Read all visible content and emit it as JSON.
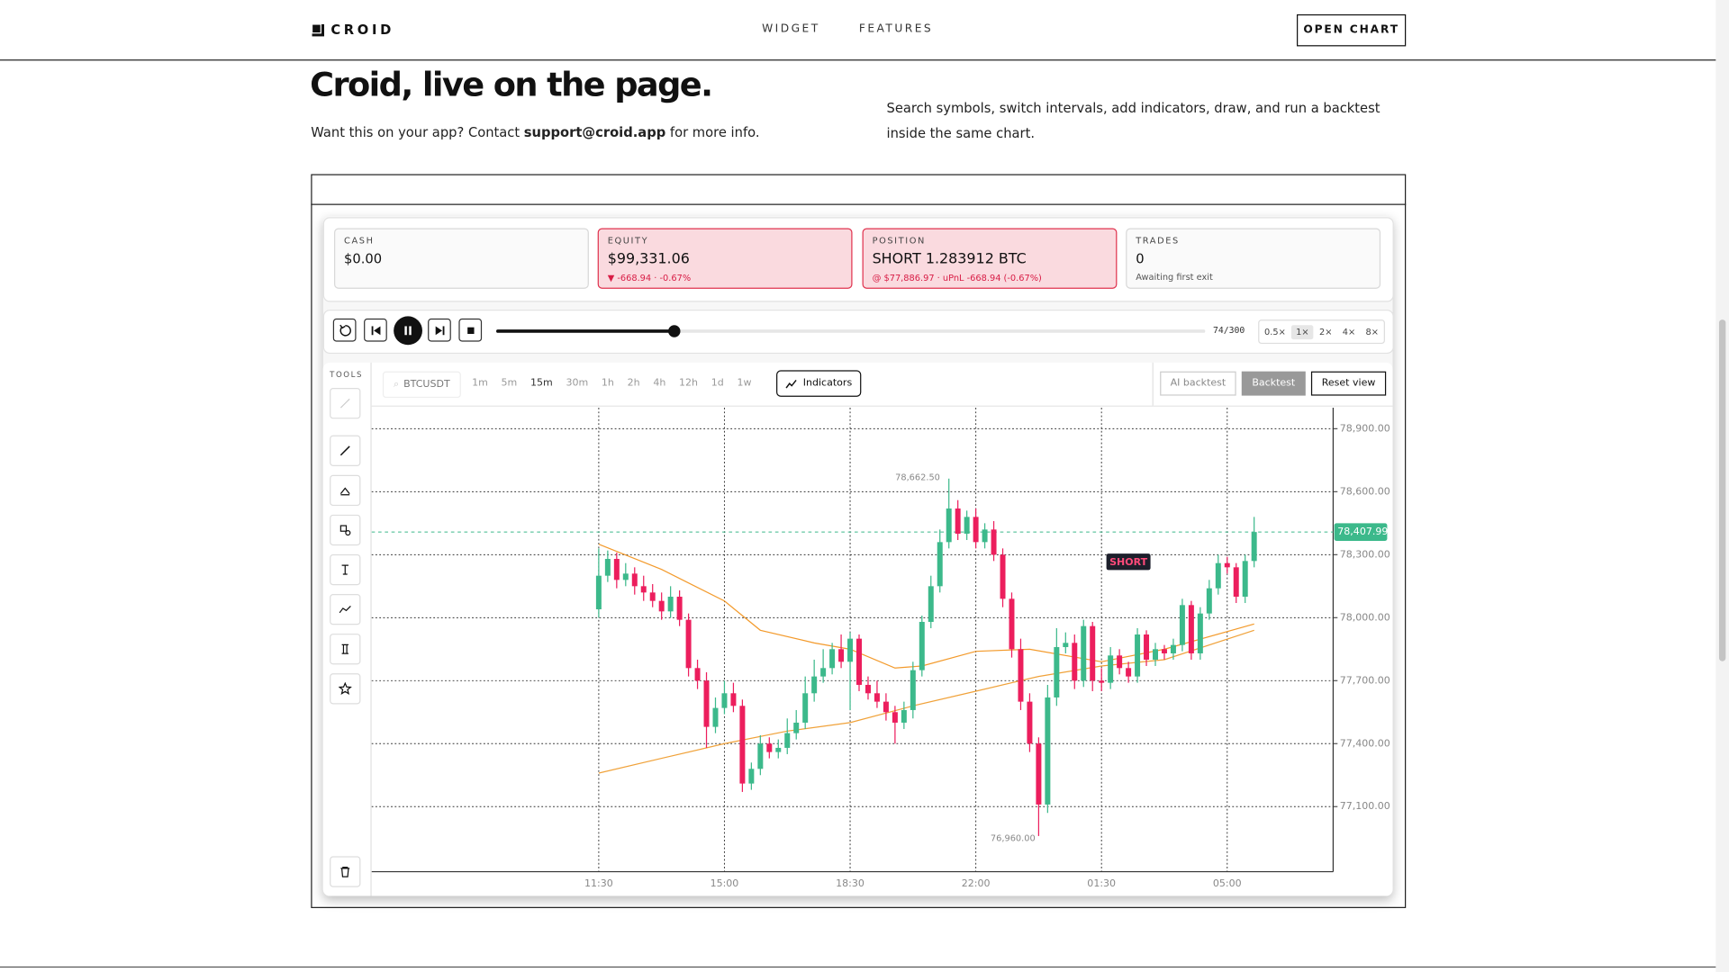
{
  "nav": {
    "brand": "CROID",
    "links": [
      "WIDGET",
      "FEATURES"
    ],
    "button": "OPEN CHART"
  },
  "hero": {
    "title": "Croid, live on the page.",
    "contact_prefix": "Want this on your app? Contact",
    "email": "support@croid.app",
    "contact_suffix": "for more info.",
    "description": "Search symbols, switch intervals, add indicators, draw, and run a backtest inside the same chart."
  },
  "stats": [
    {
      "label": "CASH",
      "value": "$0.00"
    },
    {
      "label": "EQUITY",
      "value": "$99,331.06",
      "detail": "▼ -668.94 · -0.67%"
    },
    {
      "label": "POSITION",
      "value": "SHORT 1.283912 BTC",
      "detail": "@ $77,886.97 · uPnL -668.94 (-0.67%)"
    },
    {
      "label": "TRADES",
      "value": "0",
      "detail": "Awaiting first exit"
    }
  ],
  "player": {
    "progress": "74/300",
    "speeds": [
      "0.5×",
      "1×",
      "2×",
      "4×",
      "8×"
    ]
  },
  "toolbar": {
    "tools_label": "TOOLS",
    "symbol": "BTCUSDT",
    "intervals": [
      "1m",
      "5m",
      "15m",
      "30m",
      "1h",
      "2h",
      "4h",
      "12h",
      "1d",
      "1w"
    ],
    "indicators": "Indicators",
    "buttons": [
      "AI backtest",
      "Backtest",
      "Reset view"
    ]
  },
  "chart_data": {
    "type": "candlestick",
    "x": [
      0,
      1,
      2,
      3,
      4,
      5,
      6,
      7,
      8,
      9,
      10,
      11,
      12,
      13,
      14,
      15,
      16,
      17,
      18,
      19,
      20,
      21,
      22,
      23,
      24,
      25,
      26,
      27,
      28,
      29,
      30,
      31,
      32,
      33,
      34,
      35,
      36,
      37,
      38,
      39,
      40,
      41,
      42,
      43,
      44,
      45,
      46,
      47,
      48,
      49,
      50,
      51,
      52,
      53,
      54,
      55,
      56,
      57,
      58,
      59,
      60,
      61,
      62,
      63,
      64,
      65,
      66,
      67,
      68,
      69,
      70,
      71,
      72,
      73
    ],
    "open": [
      78040,
      78200,
      78280,
      78180,
      78210,
      78150,
      78120,
      78080,
      78030,
      78100,
      77990,
      77760,
      77700,
      77480,
      77570,
      77640,
      77580,
      77210,
      77280,
      77400,
      77360,
      77380,
      77450,
      77500,
      77640,
      77720,
      77760,
      77850,
      77790,
      77900,
      77680,
      77640,
      77600,
      77550,
      77500,
      77560,
      77750,
      77980,
      78150,
      78360,
      78520,
      78400,
      78480,
      78360,
      78420,
      78300,
      78090,
      77850,
      77600,
      77400,
      77110,
      77620,
      77860,
      77880,
      77700,
      77960,
      77700,
      77690,
      77820,
      77760,
      77720,
      77920,
      77800,
      77850,
      77830,
      77870,
      78060,
      77830,
      78020,
      78140,
      78260,
      78240,
      78100,
      78270
    ],
    "high": [
      78330,
      78320,
      78310,
      78260,
      78240,
      78200,
      78160,
      78120,
      78150,
      78130,
      78020,
      77800,
      77740,
      77620,
      77700,
      77690,
      77610,
      77310,
      77440,
      77430,
      77420,
      77520,
      77560,
      77720,
      77800,
      77850,
      77880,
      77920,
      77930,
      77920,
      77720,
      77700,
      77640,
      77580,
      77600,
      77790,
      78010,
      78200,
      78420,
      78662.5,
      78560,
      78510,
      78520,
      78450,
      78460,
      78330,
      78120,
      77900,
      77640,
      77430,
      77680,
      77950,
      77930,
      77920,
      77990,
      77980,
      77760,
      77860,
      77850,
      77790,
      77950,
      77940,
      77880,
      77870,
      77900,
      78090,
      78080,
      78050,
      78180,
      78300,
      78290,
      78260,
      78300,
      78480
    ],
    "low": [
      78000,
      78170,
      78140,
      78150,
      78110,
      78080,
      78050,
      77990,
      78000,
      77960,
      77720,
      77660,
      77380,
      77450,
      77540,
      77550,
      77170,
      77180,
      77250,
      77330,
      77330,
      77350,
      77420,
      77470,
      77600,
      77690,
      77730,
      77760,
      77560,
      77650,
      77610,
      77570,
      77510,
      77400,
      77470,
      77520,
      77720,
      77950,
      78120,
      78330,
      78370,
      78370,
      78330,
      78330,
      78270,
      78050,
      77810,
      77560,
      77360,
      76960,
      77070,
      77580,
      77830,
      77660,
      77670,
      77650,
      77650,
      77660,
      77730,
      77690,
      77690,
      77770,
      77770,
      77800,
      77800,
      77840,
      77800,
      77800,
      77990,
      78110,
      78210,
      78070,
      78070,
      78240
    ],
    "close": [
      78200,
      78280,
      78180,
      78210,
      78150,
      78120,
      78080,
      78030,
      78100,
      77990,
      77760,
      77700,
      77480,
      77570,
      77640,
      77580,
      77210,
      77280,
      77400,
      77360,
      77380,
      77450,
      77500,
      77640,
      77720,
      77760,
      77850,
      77790,
      77900,
      77680,
      77640,
      77600,
      77550,
      77500,
      77560,
      77750,
      77980,
      78150,
      78360,
      78520,
      78400,
      78480,
      78360,
      78420,
      78300,
      78090,
      77850,
      77600,
      77400,
      77110,
      77620,
      77860,
      77880,
      77700,
      77960,
      77700,
      77690,
      77820,
      77760,
      77720,
      77920,
      77800,
      77850,
      77830,
      77870,
      78060,
      77830,
      78020,
      78140,
      78260,
      78240,
      78100,
      78270,
      78407.99
    ],
    "up_color": "#3cb98b",
    "down_color": "#ec1e5d",
    "xlim": [
      -25.3,
      81.8
    ],
    "xticks": [
      {
        "value": 0,
        "label": "11:30"
      },
      {
        "value": 14,
        "label": "15:00"
      },
      {
        "value": 28,
        "label": "18:30"
      },
      {
        "value": 42,
        "label": "22:00"
      },
      {
        "value": 56,
        "label": "01:30"
      },
      {
        "value": 70,
        "label": "05:00"
      }
    ],
    "ylim": [
      76790,
      79000
    ],
    "yticks": [
      {
        "value": 78900,
        "label": "78,900.00"
      },
      {
        "value": 78600,
        "label": "78,600.00"
      },
      {
        "value": 78300,
        "label": "78,300.00"
      },
      {
        "value": 78000,
        "label": "78,000.00"
      },
      {
        "value": 77700,
        "label": "77,700.00"
      },
      {
        "value": 77400,
        "label": "77,400.00"
      },
      {
        "value": 77100,
        "label": "77,100.00"
      }
    ],
    "grid": true,
    "last_price": {
      "value": 78407.99,
      "label": "78,407.99",
      "color": "#3cb98b"
    },
    "high_label": {
      "index": 39,
      "label": "78,662.50"
    },
    "low_label": {
      "index": 49,
      "label": "76,960.00"
    },
    "marker": {
      "index": 59,
      "value": 78190,
      "label": "SHORT"
    },
    "moving_averages": [
      {
        "color": "#f39a2b",
        "x": [
          0,
          7,
          14,
          18,
          24,
          28,
          33,
          36,
          42,
          48,
          56,
          63,
          73
        ],
        "values": [
          78350,
          78230,
          78080,
          77940,
          77880,
          77850,
          77760,
          77770,
          77840,
          77850,
          77790,
          77850,
          77970
        ]
      },
      {
        "color": "#f0a23a",
        "x": [
          0,
          7,
          14,
          21,
          28,
          35,
          42,
          49,
          56,
          63,
          73
        ],
        "values": [
          77260,
          77330,
          77400,
          77460,
          77500,
          77580,
          77650,
          77720,
          77770,
          77800,
          77940
        ]
      }
    ]
  }
}
